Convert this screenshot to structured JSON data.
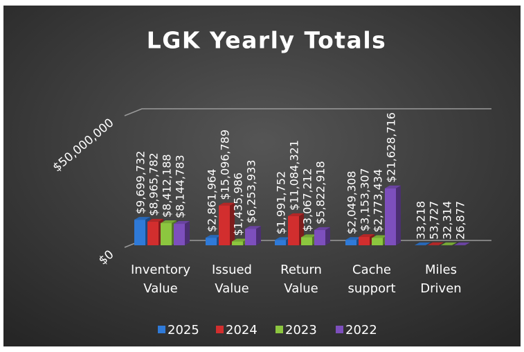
{
  "chart_data": {
    "type": "bar3d",
    "title": "LGK Yearly Totals",
    "categories": [
      "Inventory Value",
      "Issued Value",
      "Return Value",
      "Cache support",
      "Miles Driven"
    ],
    "series": [
      {
        "name": "2025",
        "color": "#2f7ad8",
        "values": [
          9699732,
          2861964,
          1991752,
          2049308,
          33218
        ],
        "value_labels": [
          "$9,699,732",
          "$2,861,964",
          "$1,991,752",
          "$2,049,308",
          "33,218"
        ]
      },
      {
        "name": "2024",
        "color": "#d22e2e",
        "values": [
          8965782,
          15096789,
          11084321,
          3153307,
          53727
        ],
        "value_labels": [
          "$8,965,782",
          "$15,096,789",
          "$11,084,321",
          "$3,153,307",
          "53,727"
        ]
      },
      {
        "name": "2023",
        "color": "#8cc63f",
        "values": [
          8412188,
          1435986,
          3067212,
          2773434,
          32314
        ],
        "value_labels": [
          "$8,412,188",
          "$1,435,986",
          "$3,067,212",
          "$2,773,434",
          "32,314"
        ]
      },
      {
        "name": "2022",
        "color": "#7d4fbd",
        "values": [
          8144783,
          6253933,
          5822918,
          21628716,
          26877
        ],
        "value_labels": [
          "$8,144,783",
          "$6,253,933",
          "$5,822,918",
          "$21,628,716",
          "26,877"
        ]
      }
    ],
    "ylim": [
      0,
      50000000
    ],
    "yticks": [
      {
        "value": 0,
        "label": "$0"
      },
      {
        "value": 50000000,
        "label": "$50,000,000"
      }
    ],
    "grid": true,
    "legend": "bottom"
  }
}
